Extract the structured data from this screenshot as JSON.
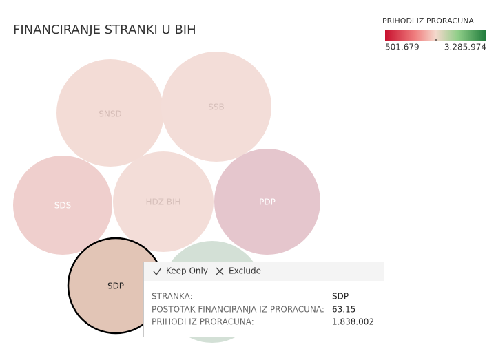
{
  "header": {
    "title": "FINANCIRANJE STRANKI U BIH"
  },
  "legend": {
    "title": "PRIHODI IZ PRORACUNA",
    "min_label": "501.679",
    "max_label": "3.285.974"
  },
  "bubbles": [
    {
      "label": "SNSD"
    },
    {
      "label": "SSB"
    },
    {
      "label": "SDS"
    },
    {
      "label": "HDZ BIH"
    },
    {
      "label": "PDP"
    },
    {
      "label": "SDP"
    }
  ],
  "tooltip": {
    "actions": [
      "Keep Only",
      "Exclude"
    ],
    "rows": [
      [
        "STRANKA:",
        "SDP"
      ],
      [
        "POSTOTAK FINANCIRANJA IZ PRORACUNA:",
        "63.15"
      ],
      [
        "PRIHODI IZ PRORACUNA:",
        "1.838.002"
      ]
    ]
  }
}
